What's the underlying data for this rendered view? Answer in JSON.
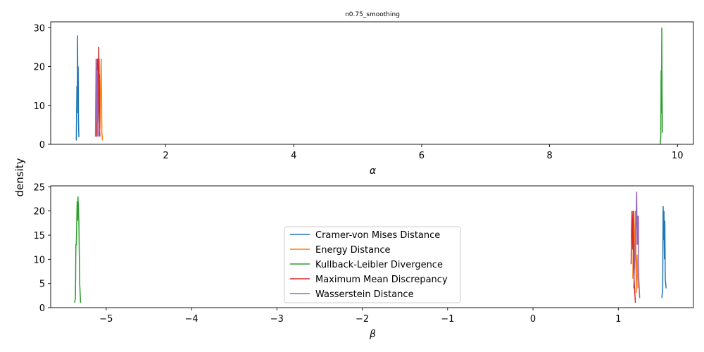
{
  "figure": {
    "title": "n0.75_smoothing",
    "shared_ylabel": "density"
  },
  "chart_data": [
    {
      "type": "line",
      "title": "n0.75_smoothing",
      "xlabel": "α",
      "ylabel": "density",
      "xlim": [
        0.2,
        10.25
      ],
      "ylim": [
        0,
        31.5
      ],
      "xticks": [
        2,
        4,
        6,
        8,
        10
      ],
      "yticks": [
        0,
        10,
        20,
        30
      ],
      "grid": false,
      "series": [
        {
          "name": "Cramer-von Mises Distance",
          "color": "#1f77b4",
          "x": [
            0.6,
            0.61,
            0.615,
            0.62,
            0.625,
            0.63,
            0.635,
            0.64,
            0.65
          ],
          "y": [
            1,
            15,
            8,
            28,
            14,
            20,
            6,
            2,
            2
          ]
        },
        {
          "name": "Energy Distance",
          "color": "#ff7f0e",
          "x": [
            0.93,
            0.95,
            0.96,
            0.97,
            0.98,
            0.99,
            1.0,
            1.01
          ],
          "y": [
            2,
            8,
            22,
            4,
            14,
            22,
            3,
            1
          ]
        },
        {
          "name": "Kullback-Leibler Divergence",
          "color": "#2ca02c",
          "x": [
            9.73,
            9.74,
            9.745,
            9.75,
            9.755,
            9.76,
            9.765,
            9.77
          ],
          "y": [
            0,
            2,
            19,
            8,
            30,
            12,
            4,
            3
          ]
        },
        {
          "name": "Maximum Mean Discrepancy",
          "color": "#d62728",
          "x": [
            0.92,
            0.93,
            0.94,
            0.95,
            0.955,
            0.96,
            0.965,
            0.97
          ],
          "y": [
            2,
            22,
            5,
            25,
            8,
            18,
            4,
            2
          ]
        },
        {
          "name": "Wasserstein Distance",
          "color": "#9467bd",
          "x": [
            0.9,
            0.91,
            0.92,
            0.93,
            0.94,
            0.95
          ],
          "y": [
            2,
            22,
            6,
            19,
            4,
            2
          ]
        }
      ]
    },
    {
      "type": "line",
      "xlabel": "β",
      "ylabel": "density",
      "xlim": [
        -5.65,
        1.88
      ],
      "ylim": [
        0,
        25.2
      ],
      "xticks": [
        -5,
        -4,
        -3,
        -2,
        -1,
        0,
        1
      ],
      "yticks": [
        0,
        5,
        10,
        15,
        20,
        25
      ],
      "grid": false,
      "legend_position": "center",
      "series": [
        {
          "name": "Cramer-von Mises Distance",
          "color": "#1f77b4",
          "x": [
            1.51,
            1.52,
            1.525,
            1.53,
            1.535,
            1.54,
            1.545,
            1.55,
            1.56
          ],
          "y": [
            2,
            4,
            21,
            14,
            20,
            10,
            18,
            6,
            4
          ]
        },
        {
          "name": "Energy Distance",
          "color": "#ff7f0e",
          "x": [
            1.17,
            1.175,
            1.18,
            1.19,
            1.2,
            1.21,
            1.22,
            1.23
          ],
          "y": [
            6,
            14,
            20,
            8,
            20,
            3,
            11,
            4
          ]
        },
        {
          "name": "Kullback-Leibler Divergence",
          "color": "#2ca02c",
          "x": [
            -5.37,
            -5.36,
            -5.355,
            -5.35,
            -5.34,
            -5.335,
            -5.33,
            -5.32,
            -5.31,
            -5.3
          ],
          "y": [
            1,
            2,
            13,
            13,
            22,
            18,
            23,
            18,
            5,
            1
          ]
        },
        {
          "name": "Maximum Mean Discrepancy",
          "color": "#d62728",
          "x": [
            1.15,
            1.155,
            1.16,
            1.17,
            1.175,
            1.18,
            1.19,
            1.2
          ],
          "y": [
            9,
            16,
            20,
            12,
            20,
            8,
            4,
            1
          ]
        },
        {
          "name": "Wasserstein Distance",
          "color": "#9467bd",
          "x": [
            1.18,
            1.19,
            1.2,
            1.21,
            1.215,
            1.22,
            1.225,
            1.23,
            1.235,
            1.24,
            1.25
          ],
          "y": [
            4,
            9,
            14,
            20,
            24,
            13,
            19,
            13,
            19,
            6,
            2
          ]
        }
      ]
    }
  ]
}
